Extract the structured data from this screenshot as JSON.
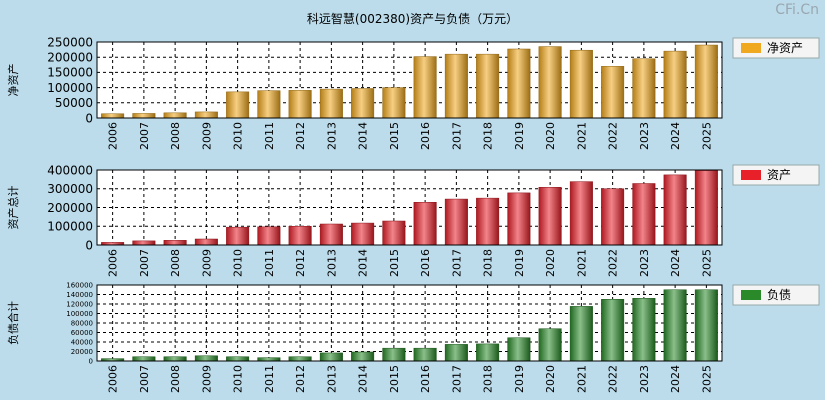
{
  "title": "科远智慧(002380)资产与负债（万元）",
  "watermark": "CFi.Cn",
  "chart_data": [
    {
      "type": "bar",
      "id": "net-assets",
      "ylabel": "净资产",
      "legend": "净资产",
      "legend_position": "top-right",
      "color": "#f0a81e",
      "ylim": [
        0,
        250000
      ],
      "yticks": [
        0,
        50000,
        100000,
        150000,
        200000,
        250000
      ],
      "categories": [
        "2006",
        "2007",
        "2008",
        "2009",
        "2010",
        "2011",
        "2012",
        "2013",
        "2014",
        "2015",
        "2016",
        "2017",
        "2018",
        "2019",
        "2020",
        "2021",
        "2022",
        "2023",
        "2024",
        "2025"
      ],
      "values": [
        14000,
        15000,
        17000,
        20000,
        86000,
        90000,
        91000,
        95000,
        97000,
        100000,
        202000,
        210000,
        210000,
        227000,
        235000,
        223000,
        170000,
        195000,
        220000,
        240000
      ]
    },
    {
      "type": "bar",
      "id": "total-assets",
      "ylabel": "资产总计",
      "legend": "资产",
      "legend_position": "top-right",
      "color": "#e8202a",
      "ylim": [
        0,
        400000
      ],
      "yticks": [
        0,
        100000,
        200000,
        300000,
        400000
      ],
      "categories": [
        "2006",
        "2007",
        "2008",
        "2009",
        "2010",
        "2011",
        "2012",
        "2013",
        "2014",
        "2015",
        "2016",
        "2017",
        "2018",
        "2019",
        "2020",
        "2021",
        "2022",
        "2023",
        "2024",
        "2025"
      ],
      "values": [
        14000,
        22000,
        25000,
        32000,
        95000,
        97000,
        100000,
        112000,
        117000,
        128000,
        228000,
        245000,
        250000,
        278000,
        308000,
        338000,
        300000,
        328000,
        374000,
        397000
      ]
    },
    {
      "type": "bar",
      "id": "total-liabilities",
      "ylabel": "负债合计",
      "legend": "负债",
      "legend_position": "top-right",
      "color": "#2a8a2a",
      "ylim": [
        0,
        160000
      ],
      "yticks": [
        0,
        20000,
        40000,
        60000,
        80000,
        100000,
        120000,
        140000,
        160000
      ],
      "categories": [
        "2006",
        "2007",
        "2008",
        "2009",
        "2010",
        "2011",
        "2012",
        "2013",
        "2014",
        "2015",
        "2016",
        "2017",
        "2018",
        "2019",
        "2020",
        "2021",
        "2022",
        "2023",
        "2024",
        "2025"
      ],
      "values": [
        5000,
        9000,
        9000,
        11000,
        9000,
        7000,
        9000,
        17000,
        19000,
        27000,
        27000,
        35000,
        36000,
        49000,
        68000,
        115000,
        130000,
        132000,
        150000,
        150000
      ]
    }
  ]
}
